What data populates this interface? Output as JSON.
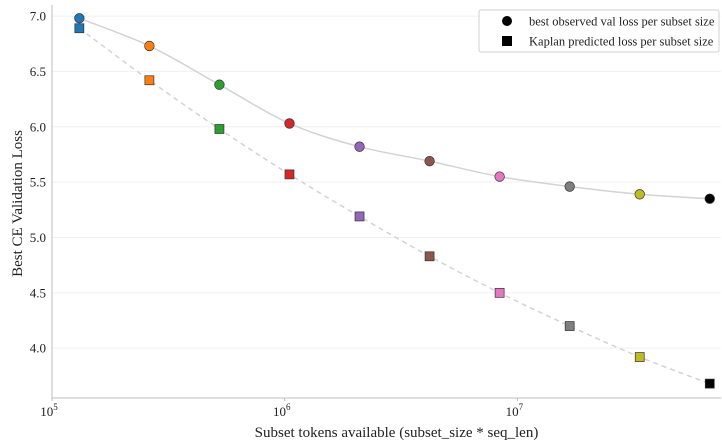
{
  "chart_data": {
    "type": "scatter",
    "xlabel": "Subset tokens available (subset_size * seq_len)",
    "ylabel": "Best CE Validation Loss",
    "xscale": "log",
    "xlim": [
      100000,
      75000000
    ],
    "ylim": [
      3.55,
      7.1
    ],
    "grid": "horizontal",
    "legend_position": "top-right",
    "x_ticks": [
      {
        "value": 100000,
        "base": "10",
        "exp": "5"
      },
      {
        "value": 1000000,
        "base": "10",
        "exp": "6"
      },
      {
        "value": 10000000,
        "base": "10",
        "exp": "7"
      }
    ],
    "y_ticks": [
      {
        "value": 4.0,
        "label": "4.0"
      },
      {
        "value": 4.5,
        "label": "4.5"
      },
      {
        "value": 5.0,
        "label": "5.0"
      },
      {
        "value": 5.5,
        "label": "5.5"
      },
      {
        "value": 6.0,
        "label": "6.0"
      },
      {
        "value": 6.5,
        "label": "6.5"
      },
      {
        "value": 7.0,
        "label": "7.0"
      }
    ],
    "point_colors": [
      "#1f77b4",
      "#ff7f0e",
      "#2ca02c",
      "#d62728",
      "#9467bd",
      "#8c564b",
      "#e377c2",
      "#7f7f7f",
      "#bcbd22",
      "#000000"
    ],
    "x": [
      131072,
      262144,
      524288,
      1048576,
      2097152,
      4194304,
      8388608,
      16777216,
      33554432,
      67108864
    ],
    "series": [
      {
        "name": "best observed val loss per subset size",
        "marker": "circle",
        "line": "solid",
        "line_color": "#d3d3d3",
        "values": [
          6.98,
          6.73,
          6.38,
          6.03,
          5.82,
          5.69,
          5.55,
          5.46,
          5.39,
          5.35
        ]
      },
      {
        "name": "Kaplan predicted loss per subset size",
        "marker": "square",
        "line": "dashed",
        "line_color": "#d3d3d3",
        "values": [
          6.89,
          6.42,
          5.98,
          5.57,
          5.19,
          4.83,
          4.5,
          4.2,
          3.92,
          3.68
        ]
      }
    ]
  }
}
